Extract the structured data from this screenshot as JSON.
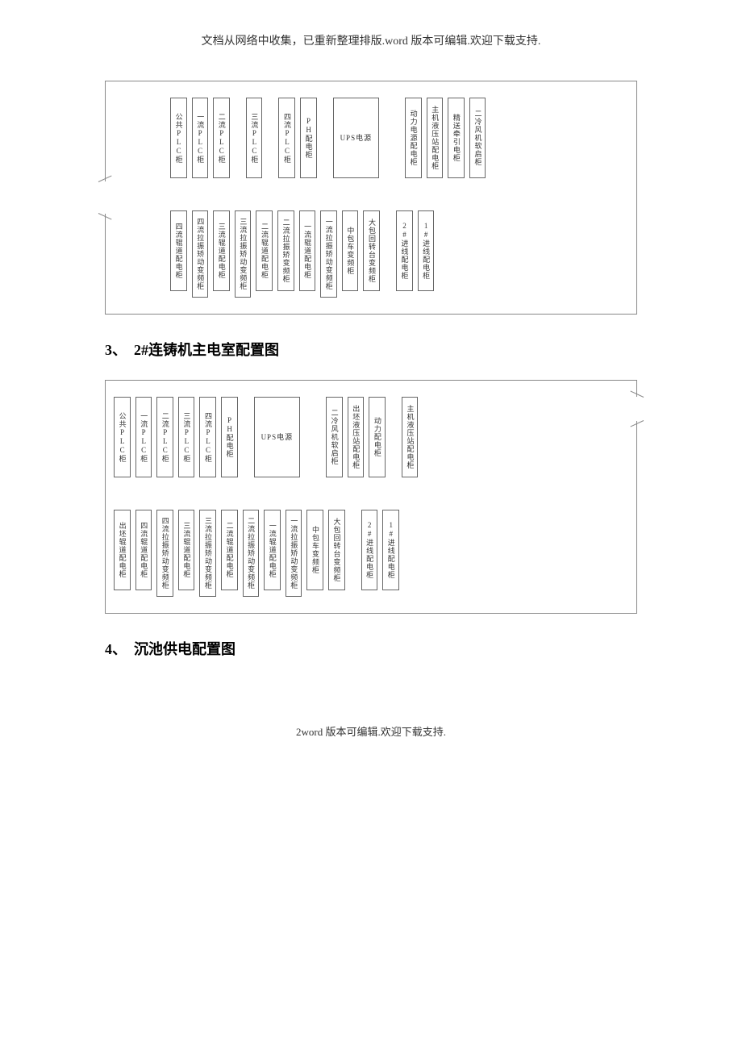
{
  "header_note": "文档从网络中收集，已重新整理排版.word 版本可编辑.欢迎下载支持.",
  "footer": "2word 版本可编辑.欢迎下载支持.",
  "heading3": "3、　2#连铸机主电室配置图",
  "heading4": "4、　沉池供电配置图",
  "d1": {
    "r1": {
      "c1": "公共PLC柜",
      "c2": "一流PLC柜",
      "c3": "二流PLC柜",
      "c4": "三流PLC柜",
      "c5": "四流PLC柜",
      "c6": "PH配电柜",
      "c7": "UPS电源",
      "c8": "动力电源配电柜",
      "c9": "主机液压站配电柜",
      "c10": "精送牵引电柜",
      "c11": "二冷风机软启柜"
    },
    "r2": {
      "c1": "四流辊道配电柜",
      "c2": "四流拉振矫动变频柜",
      "c3": "三流辊道配电柜",
      "c4": "三流拉振矫动变频柜",
      "c5": "二流辊道配电柜",
      "c6": "二流拉振矫变频柜",
      "c7": "一流辊道配电柜",
      "c8": "一流拉振矫动变频柜",
      "c9": "中包车变频柜",
      "c10": "大包回转台变频柜",
      "c11": "2#进线配电柜",
      "c12": "1#进线配电柜"
    }
  },
  "d2": {
    "r1": {
      "c1": "公共PLC柜",
      "c2": "一流PLC柜",
      "c3": "二流PLC柜",
      "c4": "三流PLC柜",
      "c5": "四流PLC柜",
      "c6": "PH配电柜",
      "c7": "UPS电源",
      "c8": "二冷风机软启柜",
      "c9": "出坯液压站配电柜",
      "c10": "动力配电柜",
      "c11": "主机液压站配电柜"
    },
    "r2": {
      "c1": "出坯辊道配电柜",
      "c2": "四流辊道配电柜",
      "c3": "四流拉振矫动变频柜",
      "c4": "三流辊道配电柜",
      "c5": "三流拉振矫动变频柜",
      "c6": "二流辊道配电柜",
      "c7": "二流拉振矫动变频柜",
      "c8": "一流辊道配电柜",
      "c9": "一流拉振矫动变频柜",
      "c10": "中包车变频柜",
      "c11": "大包回转台变频柜",
      "c12": "2#进线配电柜",
      "c13": "1#进线配电柜"
    }
  }
}
